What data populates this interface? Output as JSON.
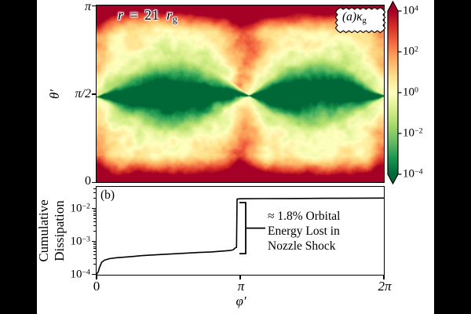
{
  "colors": {
    "letterbox": "#000000",
    "figure_background": "#ffffff",
    "curve": "#000000",
    "high_end": "#a50026",
    "low_end": "#006837"
  },
  "chart_data": [
    {
      "type": "heatmap",
      "panel_tag": {
        "prefix": "(a)",
        "symbol": "κ",
        "subscript": "g"
      },
      "title_parts": {
        "var": "r",
        "equals": "=",
        "value": "21",
        "unit_var": "r",
        "unit_sub": "g"
      },
      "xlabel": "φ′",
      "ylabel": "θ′",
      "x_ticks": [
        "0",
        "π",
        "2π"
      ],
      "y_ticks": [
        "π",
        "π/2",
        "0"
      ],
      "x_range_pi": [
        0,
        2
      ],
      "y_range_pi": [
        0,
        1
      ],
      "colorbar": {
        "scale": "log",
        "vmin": 0.0001,
        "vmax": 10000,
        "extend": "both",
        "ticks": [
          {
            "base": "10",
            "exp": "4"
          },
          {
            "base": "10",
            "exp": "2"
          },
          {
            "base": "10",
            "exp": "0"
          },
          {
            "base": "10",
            "exp": "−2"
          },
          {
            "base": "10",
            "exp": "−4"
          }
        ],
        "colormap": "RdYlGn_r",
        "stops_low_to_high": [
          "#006837",
          "#1a9850",
          "#66bd63",
          "#a6d96a",
          "#d9ef8b",
          "#ffffbf",
          "#fee08b",
          "#fdae61",
          "#f46d43",
          "#d73027",
          "#a50026"
        ]
      },
      "field_structure": {
        "description": "log10 dissipation map: dark-red high bands at θ′≈0 and θ′≈π, pale-yellow turbulent lobes, dark-green low-dissipation bowtie wedges along midplane θ′=π/2 pinched at φ′≈0, φ′≈1.05π and φ′≈2π, orange columns near φ′≈π and at the periodic edges",
        "pinch_phi_frac": 0.53,
        "wedge_halfwidth_frac": 0.215,
        "cap_start_frac": 0.345,
        "log_range": [
          -4,
          4
        ],
        "seed": 20
      }
    },
    {
      "type": "line",
      "panel_tag": "(b)",
      "ylabel_lines": [
        "Cumulative",
        "Dissipation"
      ],
      "xlabel": "φ′",
      "yscale": "log",
      "ylim": [
        0.0001,
        0.0475
      ],
      "y_ticks": [
        {
          "base": "10",
          "exp": "−2",
          "value": 0.01
        },
        {
          "base": "10",
          "exp": "−3",
          "value": 0.001
        },
        {
          "base": "10",
          "exp": "−4",
          "value": 0.0001
        }
      ],
      "x_ticks": [
        {
          "label": "0",
          "phi_pi": 0
        },
        {
          "label": "π",
          "phi_pi": 1
        },
        {
          "label": "2π",
          "phi_pi": 2
        }
      ],
      "points_phi_pi": [
        0,
        0.012,
        0.02,
        0.035,
        0.055,
        0.09,
        0.14,
        0.22,
        0.32,
        0.45,
        0.58,
        0.7,
        0.8,
        0.88,
        0.93,
        0.952,
        0.963,
        0.97,
        0.9745,
        0.978,
        1.0,
        1.15,
        1.35,
        1.6,
        1.85,
        2.0
      ],
      "points_value": [
        0.0001,
        0.00012,
        0.00016,
        0.00023,
        0.00027,
        0.0003,
        0.00032,
        0.00034,
        0.00037,
        0.0004,
        0.00043,
        0.00046,
        0.00048,
        0.00051,
        0.00053,
        0.00056,
        0.00062,
        0.00065,
        0.00066,
        0.0192,
        0.0196,
        0.0198,
        0.02,
        0.0203,
        0.0205,
        0.0206
      ],
      "jump": {
        "phi_pi": 0.978,
        "from": 0.00066,
        "to": 0.0192,
        "fraction_label": "≈ 1.8%"
      },
      "annotation_lines": [
        "≈ 1.8% Orbital",
        "Energy Lost in",
        "Nozzle Shock"
      ]
    }
  ]
}
